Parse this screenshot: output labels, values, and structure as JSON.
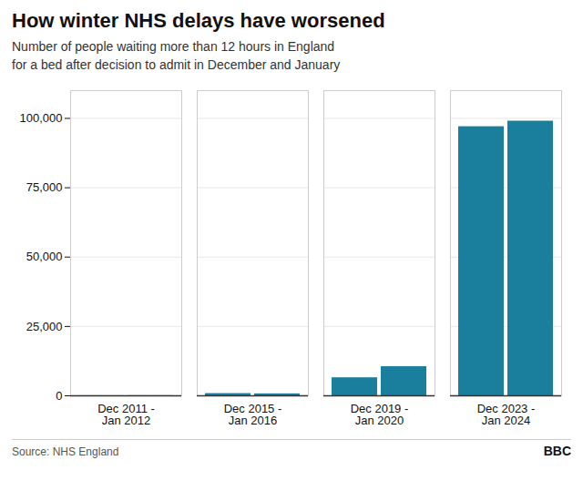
{
  "chart_data": {
    "type": "bar",
    "title": "How winter NHS delays have worsened",
    "subtitle": "Number of people waiting more than 12 hours in England\nfor a bed after decision to admit in December and January",
    "source": "Source: NHS England",
    "annotations": [
      "BBC"
    ],
    "categories": [
      "Dec 2011 -\nJan 2012",
      "Dec 2015 -\nJan 2016",
      "Dec 2019 -\nJan 2020",
      "Dec 2023 -\nJan 2024"
    ],
    "series": [
      {
        "color": "#1a7f9c",
        "values": [
          30,
          800,
          6500,
          97000
        ]
      },
      {
        "color": "#1a7f9c",
        "values": [
          50,
          700,
          10500,
          99000
        ]
      }
    ],
    "ylim": [
      0,
      110000
    ],
    "yticks": [
      0,
      {
        "value": 25000,
        "label": "25,000"
      },
      {
        "value": 50000,
        "label": "50,000"
      },
      {
        "value": 75000,
        "label": "75,000"
      },
      {
        "value": 100000,
        "label": "100,000"
      }
    ],
    "grid": true
  }
}
